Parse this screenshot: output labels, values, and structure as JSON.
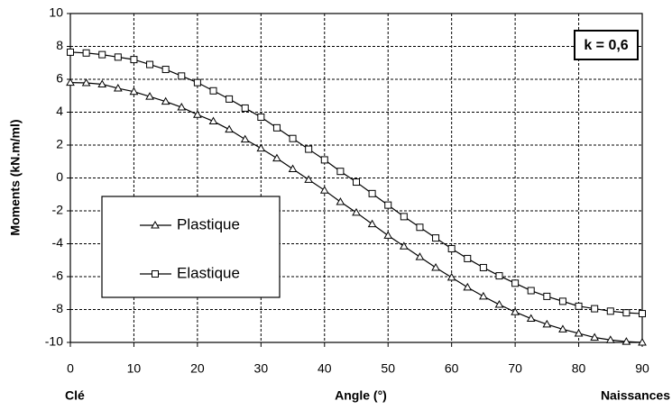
{
  "chart_data": {
    "type": "line",
    "ylabel": "Moments (kN.m/ml)",
    "xlabel": "Angle (°)",
    "xlabel_left": "Clé",
    "xlabel_right": "Naissances",
    "annotation": "k = 0,6",
    "x": [
      0,
      2.5,
      5,
      7.5,
      10,
      12.5,
      15,
      17.5,
      20,
      22.5,
      25,
      27.5,
      30,
      32.5,
      35,
      37.5,
      40,
      42.5,
      45,
      47.5,
      50,
      52.5,
      55,
      57.5,
      60,
      62.5,
      65,
      67.5,
      70,
      72.5,
      75,
      77.5,
      80,
      82.5,
      85,
      87.5,
      90
    ],
    "series": [
      {
        "name": "Plastique",
        "color": "#000000",
        "marker": "triangle",
        "values": [
          5.8,
          5.78,
          5.7,
          5.45,
          5.25,
          4.95,
          4.65,
          4.3,
          3.85,
          3.45,
          2.95,
          2.35,
          1.8,
          1.2,
          0.55,
          -0.1,
          -0.75,
          -1.45,
          -2.1,
          -2.8,
          -3.5,
          -4.15,
          -4.8,
          -5.45,
          -6.05,
          -6.65,
          -7.2,
          -7.7,
          -8.15,
          -8.55,
          -8.9,
          -9.2,
          -9.45,
          -9.7,
          -9.85,
          -9.95,
          -10
        ]
      },
      {
        "name": "Elastique",
        "color": "#000000",
        "marker": "square",
        "values": [
          7.65,
          7.6,
          7.5,
          7.35,
          7.2,
          6.9,
          6.6,
          6.2,
          5.8,
          5.3,
          4.8,
          4.25,
          3.7,
          3.05,
          2.4,
          1.75,
          1.1,
          0.4,
          -0.25,
          -0.95,
          -1.65,
          -2.35,
          -3.0,
          -3.65,
          -4.3,
          -4.9,
          -5.45,
          -5.95,
          -6.4,
          -6.85,
          -7.2,
          -7.5,
          -7.8,
          -7.95,
          -8.1,
          -8.2,
          -8.25
        ]
      }
    ],
    "xlim": [
      0,
      90
    ],
    "xticks": [
      0,
      10,
      20,
      30,
      40,
      50,
      60,
      70,
      80,
      90
    ],
    "ylim": [
      -10,
      10
    ],
    "yticks": [
      -10,
      -8,
      -6,
      -4,
      -2,
      0,
      2,
      4,
      6,
      8,
      10
    ],
    "grid": true
  }
}
